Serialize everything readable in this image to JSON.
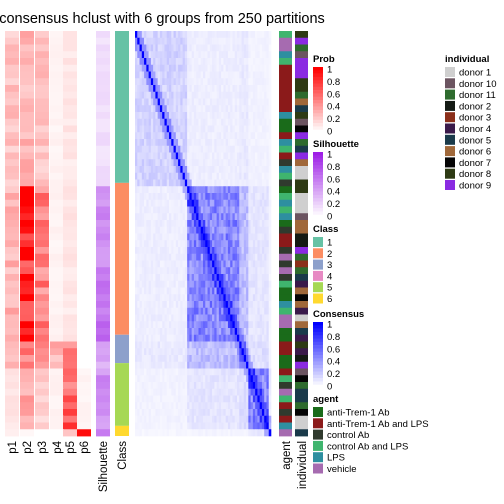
{
  "chart_data": {
    "type": "heatmap",
    "title": "consensus hclust with 6 groups from 250 partitions",
    "annotation_columns": [
      "p1",
      "p2",
      "p3",
      "p4",
      "p5",
      "p6",
      "Silhouette",
      "Class"
    ],
    "side_annotation_labels": [
      "agent",
      "individual"
    ],
    "class_blocks": [
      {
        "class": "1",
        "fraction": 0.375
      },
      {
        "class": "2",
        "fraction": 0.375
      },
      {
        "class": "3",
        "fraction": 0.07
      },
      {
        "class": "5",
        "fraction": 0.155
      },
      {
        "class": "6",
        "fraction": 0.025
      }
    ],
    "prob_values_by_block": [
      [
        0.25,
        0.3,
        0.25,
        0.05,
        0.1,
        0.0
      ],
      [
        0.3,
        0.95,
        0.5,
        0.05,
        0.1,
        0.0
      ],
      [
        0.3,
        0.5,
        0.4,
        0.3,
        0.45,
        0.0
      ],
      [
        0.1,
        0.4,
        0.2,
        0.05,
        0.7,
        0.05
      ],
      [
        0.05,
        0.05,
        0.0,
        0.0,
        0.2,
        0.9
      ]
    ],
    "silhouette_by_block": [
      0.15,
      0.6,
      0.4,
      0.55,
      0.8
    ],
    "legends": {
      "prob": {
        "title": "Prob",
        "ticks": [
          "1",
          "0.8",
          "0.6",
          "0.4",
          "0.2",
          "0"
        ],
        "color": "#ff0000"
      },
      "silhouette": {
        "title": "Silhouette",
        "ticks": [
          "1",
          "0.8",
          "0.6",
          "0.4",
          "0.2",
          "0"
        ],
        "color": "#9e1fe6"
      },
      "class": {
        "title": "Class",
        "items": [
          {
            "label": "1",
            "color": "#66c2a5"
          },
          {
            "label": "2",
            "color": "#fc8d62"
          },
          {
            "label": "3",
            "color": "#8da0cb"
          },
          {
            "label": "4",
            "color": "#e78ac3"
          },
          {
            "label": "5",
            "color": "#a6d854"
          },
          {
            "label": "6",
            "color": "#ffd92f"
          }
        ]
      },
      "consensus": {
        "title": "Consensus",
        "ticks": [
          "1",
          "0.8",
          "0.6",
          "0.4",
          "0.2",
          "0"
        ],
        "color": "#0000ff"
      },
      "agent": {
        "title": "agent",
        "items": [
          {
            "label": "anti-Trem-1 Ab",
            "color": "#1a6b1a"
          },
          {
            "label": "anti-Trem-1 Ab and LPS",
            "color": "#8b1a1a"
          },
          {
            "label": "control Ab",
            "color": "#303a2e"
          },
          {
            "label": "control Ab and LPS",
            "color": "#3fb56e"
          },
          {
            "label": "LPS",
            "color": "#2e8fa0"
          },
          {
            "label": "vehicle",
            "color": "#a66bb0"
          }
        ]
      },
      "individual": {
        "title": "individual",
        "items": [
          {
            "label": "donor 1",
            "color": "#cfcfcf"
          },
          {
            "label": "donor 10",
            "color": "#6b5460"
          },
          {
            "label": "donor 11",
            "color": "#2e6b2e"
          },
          {
            "label": "donor 2",
            "color": "#141a14"
          },
          {
            "label": "donor 3",
            "color": "#8b2f1a"
          },
          {
            "label": "donor 4",
            "color": "#3a1a4a"
          },
          {
            "label": "donor 5",
            "color": "#1a3a4a"
          },
          {
            "label": "donor 6",
            "color": "#a0683a"
          },
          {
            "label": "donor 7",
            "color": "#050505"
          },
          {
            "label": "donor 8",
            "color": "#2e3a14"
          },
          {
            "label": "donor 9",
            "color": "#8a2be2"
          }
        ]
      }
    }
  }
}
